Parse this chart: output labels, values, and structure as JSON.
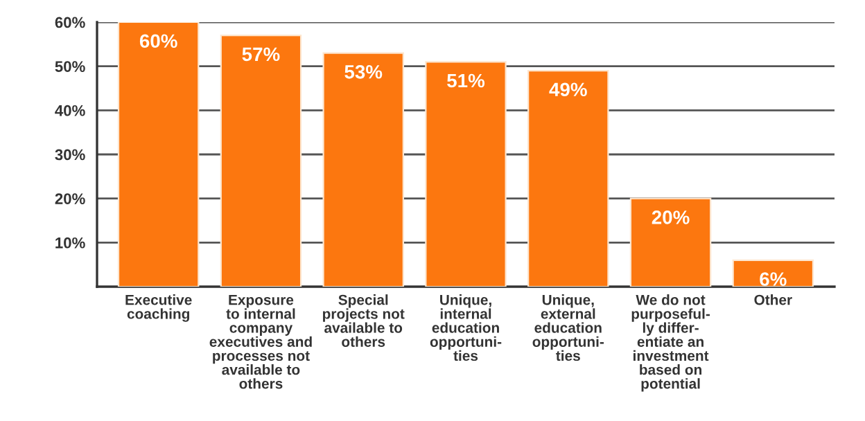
{
  "chart_data": {
    "type": "bar",
    "categories": [
      "Executive\ncoaching",
      "Exposure\nto internal\ncompany\nexecutives and\nprocesses not\navailable to\nothers",
      "Special\nprojects not\navailable to\nothers",
      "Unique,\ninternal\neducation\nopportuni-\nties",
      "Unique,\nexternal\neducation\nopportuni-\nties",
      "We do not\npurposeful-\nly differ-\nentiate an\ninvestment\nbased on\npotential",
      "Other"
    ],
    "values": [
      60,
      57,
      53,
      51,
      49,
      20,
      6
    ],
    "value_labels": [
      "60%",
      "57%",
      "53%",
      "51%",
      "49%",
      "20%",
      "6%"
    ],
    "color": "#fc770f",
    "ylim": [
      0,
      60
    ],
    "yticks": [
      {
        "value": 10,
        "label": "10%"
      },
      {
        "value": 20,
        "label": "20%"
      },
      {
        "value": 30,
        "label": "30%"
      },
      {
        "value": 40,
        "label": "40%"
      },
      {
        "value": 50,
        "label": "50%"
      },
      {
        "value": 60,
        "label": "60%"
      }
    ],
    "grid": "y",
    "legend": false
  }
}
